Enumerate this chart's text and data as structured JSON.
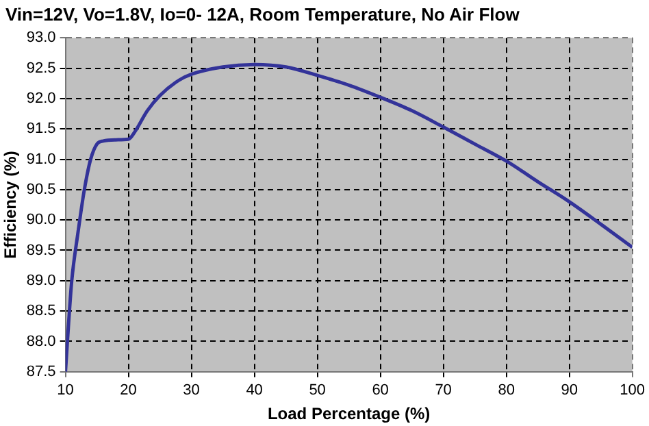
{
  "chart_data": {
    "type": "line",
    "title": "Vin=12V, Vo=1.8V, Io=0- 12A, Room Temperature, No Air Flow",
    "xlabel": "Load Percentage (%)",
    "ylabel": "Efficiency (%)",
    "x": [
      10,
      10.5,
      11,
      12,
      13,
      14,
      15,
      16,
      18,
      20,
      21,
      23,
      25,
      28,
      30,
      35,
      40,
      45,
      50,
      55,
      60,
      65,
      70,
      75,
      80,
      85,
      90,
      95,
      100
    ],
    "series": [
      {
        "color": "#333399",
        "values": [
          87.5,
          88.3,
          89.0,
          89.8,
          90.5,
          91.0,
          91.25,
          91.3,
          91.32,
          91.33,
          91.45,
          91.8,
          92.05,
          92.3,
          92.4,
          92.52,
          92.56,
          92.52,
          92.38,
          92.22,
          92.02,
          91.8,
          91.53,
          91.25,
          90.97,
          90.63,
          90.3,
          89.93,
          89.55
        ]
      }
    ],
    "xlim": [
      10,
      100
    ],
    "xticks": [
      10,
      20,
      30,
      40,
      50,
      60,
      70,
      80,
      90,
      100
    ],
    "ylim": [
      87.5,
      93.0
    ],
    "yticks": [
      {
        "value": 87.5,
        "label": "87.5"
      },
      {
        "value": 88,
        "label": "88.0"
      },
      {
        "value": 88.5,
        "label": "88.5"
      },
      {
        "value": 89,
        "label": "89.0"
      },
      {
        "value": 89.5,
        "label": "89.5"
      },
      {
        "value": 90,
        "label": "90.0"
      },
      {
        "value": 90.5,
        "label": "90.5"
      },
      {
        "value": 91,
        "label": "91.0"
      },
      {
        "value": 91.5,
        "label": "91.5"
      },
      {
        "value": 92,
        "label": "92.0"
      },
      {
        "value": 92.5,
        "label": "92.5"
      },
      {
        "value": 93,
        "label": "93.0"
      }
    ],
    "grid": true,
    "legend": false,
    "marker": "none",
    "line_style": "solid"
  }
}
